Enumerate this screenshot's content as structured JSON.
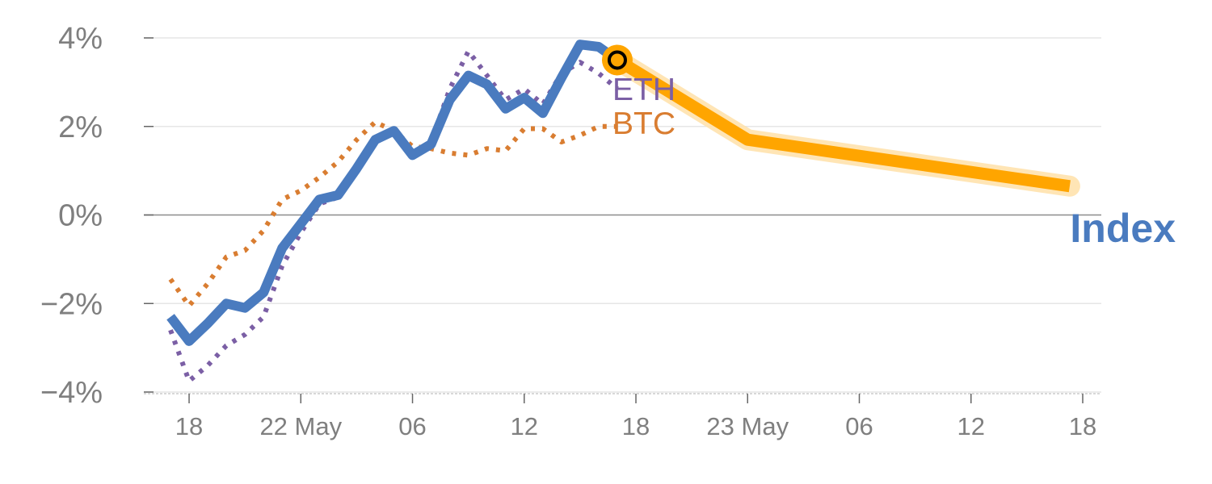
{
  "chart_data": {
    "type": "line",
    "title": "",
    "xlabel": "",
    "ylabel": "",
    "ylim": [
      -4,
      4
    ],
    "xlim": [
      0,
      49
    ],
    "yticks": [
      {
        "value": -4,
        "label": "−4%"
      },
      {
        "value": -2,
        "label": "−2%"
      },
      {
        "value": 0,
        "label": "0%"
      },
      {
        "value": 2,
        "label": "2%"
      },
      {
        "value": 4,
        "label": "4%"
      }
    ],
    "xticks": [
      {
        "value": 1,
        "label": "18"
      },
      {
        "value": 7,
        "label": "22 May"
      },
      {
        "value": 13,
        "label": "06"
      },
      {
        "value": 19,
        "label": "12"
      },
      {
        "value": 25,
        "label": "18"
      },
      {
        "value": 31,
        "label": "23 May"
      },
      {
        "value": 37,
        "label": "06"
      },
      {
        "value": 43,
        "label": "12"
      },
      {
        "value": 49,
        "label": "18"
      }
    ],
    "grid": true,
    "series": [
      {
        "name": "Index",
        "color": "#4a7bbf",
        "style": "solid",
        "x": [
          0,
          1,
          2,
          3,
          4,
          5,
          6,
          7,
          8,
          9,
          10,
          11,
          12,
          13,
          14,
          15,
          16,
          17,
          18,
          19,
          20,
          21,
          22,
          23,
          24
        ],
        "y": [
          -2.3,
          -2.85,
          -2.45,
          -2.0,
          -2.1,
          -1.75,
          -0.75,
          -0.2,
          0.35,
          0.45,
          1.05,
          1.7,
          1.9,
          1.35,
          1.6,
          2.6,
          3.15,
          2.95,
          2.4,
          2.65,
          2.3,
          3.1,
          3.85,
          3.8,
          3.5
        ]
      },
      {
        "name": "ETH",
        "color": "#7b5fa5",
        "style": "dotted",
        "x": [
          0,
          1,
          2,
          3,
          4,
          5,
          6,
          7,
          8,
          9,
          10,
          11,
          12,
          13,
          14,
          15,
          16,
          17,
          18,
          19,
          20,
          21,
          22,
          23,
          24
        ],
        "y": [
          -2.6,
          -3.75,
          -3.4,
          -2.95,
          -2.7,
          -2.3,
          -1.15,
          -0.4,
          0.25,
          0.4,
          1.1,
          1.75,
          1.85,
          1.4,
          1.65,
          2.85,
          3.7,
          3.15,
          2.6,
          2.85,
          2.5,
          3.2,
          3.45,
          3.2,
          2.85
        ]
      },
      {
        "name": "BTC",
        "color": "#d97d31",
        "style": "dotted",
        "x": [
          0,
          1,
          2,
          3,
          4,
          5,
          6,
          7,
          8,
          9,
          10,
          11,
          12,
          13,
          14,
          15,
          16,
          17,
          18,
          19,
          20,
          21,
          22,
          23,
          24
        ],
        "y": [
          -1.45,
          -2.05,
          -1.55,
          -0.95,
          -0.8,
          -0.35,
          0.35,
          0.55,
          0.85,
          1.2,
          1.7,
          2.1,
          1.9,
          1.55,
          1.5,
          1.4,
          1.35,
          1.5,
          1.45,
          1.95,
          1.95,
          1.65,
          1.8,
          2.0,
          2.0
        ]
      },
      {
        "name": "",
        "color": "#ffa500",
        "style": "projection",
        "x": [
          24,
          31,
          48.3
        ],
        "y": [
          3.5,
          1.7,
          0.65
        ]
      }
    ],
    "marker": {
      "x": 24,
      "y": 3.5,
      "color": "#ffa500"
    }
  }
}
